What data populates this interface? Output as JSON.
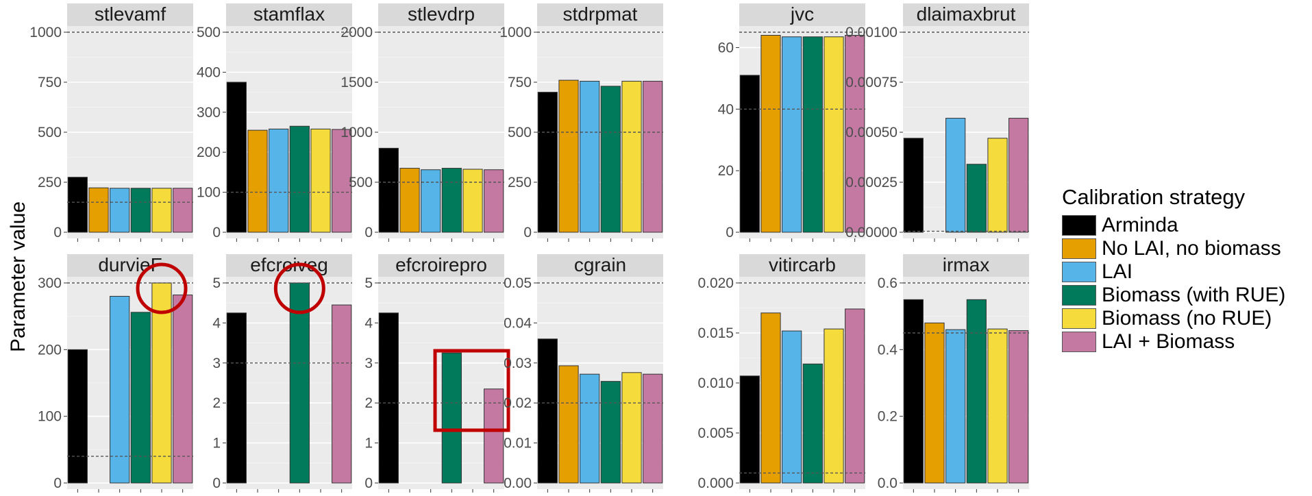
{
  "figure": {
    "y_label": "Parameter value",
    "legend_title": "Calibration strategy"
  },
  "series": [
    {
      "name": "Arminda",
      "color": "#000000"
    },
    {
      "name": "No LAI, no biomass",
      "color": "#E69F00"
    },
    {
      "name": "LAI",
      "color": "#56B4E9"
    },
    {
      "name": "Biomass (with RUE)",
      "color": "#007A5A"
    },
    {
      "name": "Biomass (no RUE)",
      "color": "#F5DC3C"
    },
    {
      "name": "LAI + Biomass",
      "color": "#C479A2"
    }
  ],
  "chart_data": [
    {
      "type": "bar",
      "title": "stlevamf",
      "ylim": [
        0,
        1000
      ],
      "ticks": [
        "0",
        "250",
        "500",
        "750",
        "1000"
      ],
      "tick_values": [
        0,
        250,
        500,
        750,
        1000
      ],
      "values": [
        275,
        222,
        220,
        220,
        220,
        220
      ],
      "ref_lines": [
        1000,
        150
      ]
    },
    {
      "type": "bar",
      "title": "stamflax",
      "ylim": [
        0,
        500
      ],
      "ticks": [
        "0",
        "100",
        "200",
        "300",
        "400",
        "500"
      ],
      "tick_values": [
        0,
        100,
        200,
        300,
        400,
        500
      ],
      "values": [
        375,
        255,
        258,
        265,
        258,
        257
      ],
      "ref_lines": [
        500,
        100
      ]
    },
    {
      "type": "bar",
      "title": "stlevdrp",
      "ylim": [
        0,
        2000
      ],
      "ticks": [
        "0",
        "500",
        "1000",
        "1500",
        "2000"
      ],
      "tick_values": [
        0,
        500,
        1000,
        1500,
        2000
      ],
      "values": [
        840,
        640,
        625,
        640,
        630,
        625
      ],
      "ref_lines": [
        2000,
        500
      ]
    },
    {
      "type": "bar",
      "title": "stdrpmat",
      "ylim": [
        0,
        1000
      ],
      "ticks": [
        "0",
        "250",
        "500",
        "750",
        "1000"
      ],
      "tick_values": [
        0,
        250,
        500,
        750,
        1000
      ],
      "values": [
        700,
        760,
        755,
        730,
        755,
        755
      ],
      "ref_lines": [
        1000,
        500
      ]
    },
    {
      "type": "bar",
      "title": "jvc",
      "ylim": [
        0,
        65
      ],
      "ticks": [
        "0",
        "20",
        "40",
        "60"
      ],
      "tick_values": [
        0,
        20,
        40,
        60
      ],
      "values": [
        51,
        64,
        63.5,
        63.5,
        63.5,
        64
      ],
      "ref_lines": [
        65,
        40
      ]
    },
    {
      "type": "bar",
      "title": "dlaimaxbrut",
      "ylim": [
        0,
        0.001
      ],
      "ticks": [
        "0.00000",
        "0.00025",
        "0.00050",
        "0.00075",
        "0.00100"
      ],
      "tick_values": [
        0,
        0.00025,
        0.0005,
        0.00075,
        0.001
      ],
      "values": [
        0.00047,
        null,
        0.00057,
        0.00034,
        0.00047,
        0.00057
      ],
      "ref_lines": [
        0.001,
        5e-06
      ]
    },
    {
      "type": "bar",
      "title": "durvieF",
      "ylim": [
        0,
        300
      ],
      "ticks": [
        "0",
        "100",
        "200",
        "300"
      ],
      "tick_values": [
        0,
        100,
        200,
        300
      ],
      "values": [
        200,
        null,
        280,
        256,
        300,
        282
      ],
      "ref_lines": [
        300,
        40
      ],
      "annotations": [
        {
          "shape": "circle",
          "bar": 4
        }
      ]
    },
    {
      "type": "bar",
      "title": "efcroiveg",
      "ylim": [
        0,
        5
      ],
      "ticks": [
        "0",
        "1",
        "2",
        "3",
        "4",
        "5"
      ],
      "tick_values": [
        0,
        1,
        2,
        3,
        4,
        5
      ],
      "values": [
        4.25,
        null,
        null,
        5,
        null,
        4.45
      ],
      "ref_lines": [
        5,
        3
      ],
      "annotations": [
        {
          "shape": "circle",
          "bar": 3
        }
      ]
    },
    {
      "type": "bar",
      "title": "efcroirepro",
      "ylim": [
        0,
        5
      ],
      "ticks": [
        "0",
        "1",
        "2",
        "3",
        "4",
        "5"
      ],
      "tick_values": [
        0,
        1,
        2,
        3,
        4,
        5
      ],
      "values": [
        4.25,
        null,
        null,
        3.25,
        null,
        2.35
      ],
      "ref_lines": [
        5,
        2
      ],
      "annotations": [
        {
          "shape": "rect",
          "bar_from": 3,
          "bar_to": 5
        }
      ]
    },
    {
      "type": "bar",
      "title": "cgrain",
      "ylim": [
        0,
        0.05
      ],
      "ticks": [
        "0.00",
        "0.01",
        "0.02",
        "0.03",
        "0.04",
        "0.05"
      ],
      "tick_values": [
        0,
        0.01,
        0.02,
        0.03,
        0.04,
        0.05
      ],
      "values": [
        0.036,
        0.0293,
        0.0272,
        0.0254,
        0.0276,
        0.0272
      ],
      "ref_lines": [
        0.05,
        0.02
      ]
    },
    {
      "type": "bar",
      "title": "vitircarb",
      "ylim": [
        0,
        0.02
      ],
      "ticks": [
        "0.000",
        "0.005",
        "0.010",
        "0.015",
        "0.020"
      ],
      "tick_values": [
        0,
        0.005,
        0.01,
        0.015,
        0.02
      ],
      "values": [
        0.0107,
        0.017,
        0.0152,
        0.0119,
        0.0154,
        0.0174
      ],
      "ref_lines": [
        0.02,
        0.001
      ]
    },
    {
      "type": "bar",
      "title": "irmax",
      "ylim": [
        0,
        0.6
      ],
      "ticks": [
        "0.0",
        "0.2",
        "0.4",
        "0.6"
      ],
      "tick_values": [
        0,
        0.2,
        0.4,
        0.6
      ],
      "values": [
        0.55,
        0.48,
        0.46,
        0.55,
        0.462,
        0.457
      ],
      "ref_lines": [
        0.6,
        0.45
      ]
    }
  ]
}
